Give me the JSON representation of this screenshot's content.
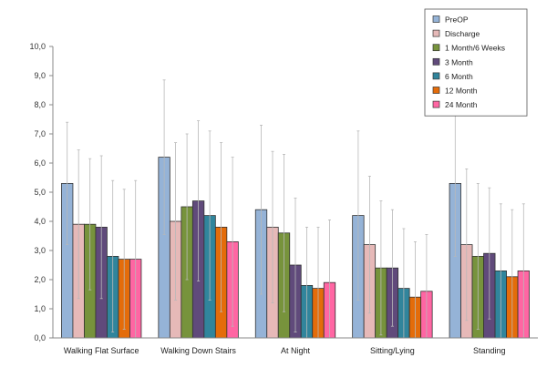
{
  "chart_data": {
    "type": "bar",
    "categories": [
      "Walking Flat Surface",
      "Walking Down Stairs",
      "At Night",
      "Sitting/Lying",
      "Standing"
    ],
    "ylim": [
      0,
      10
    ],
    "yticks": [
      "0,0",
      "1,0",
      "2,0",
      "3,0",
      "4,0",
      "5,0",
      "6,0",
      "7,0",
      "8,0",
      "9,0",
      "10,0"
    ],
    "grid": false,
    "legend_position": "top-right",
    "error_bars": true,
    "series": [
      {
        "name": "PreOP",
        "color": "#95b3d7",
        "values": [
          5.3,
          6.2,
          4.4,
          4.2,
          5.3
        ],
        "errors": [
          2.1,
          2.65,
          2.9,
          2.9,
          2.5
        ]
      },
      {
        "name": "Discharge",
        "color": "#e6b9b8",
        "values": [
          3.9,
          4.0,
          3.8,
          3.2,
          3.2
        ],
        "errors": [
          2.55,
          2.7,
          2.6,
          2.35,
          2.6
        ]
      },
      {
        "name": "1 Month/6 Weeks",
        "color": "#77933c",
        "values": [
          3.9,
          4.5,
          3.6,
          2.4,
          2.8
        ],
        "errors": [
          2.25,
          2.5,
          2.7,
          2.3,
          2.5
        ]
      },
      {
        "name": "3 Month",
        "color": "#604a7b",
        "values": [
          3.8,
          4.7,
          2.5,
          2.4,
          2.9
        ],
        "errors": [
          2.45,
          2.75,
          2.3,
          2.0,
          2.25
        ]
      },
      {
        "name": "6 Month",
        "color": "#31859c",
        "values": [
          2.8,
          4.2,
          1.8,
          1.7,
          2.3
        ],
        "errors": [
          2.6,
          2.9,
          2.0,
          2.05,
          2.3
        ]
      },
      {
        "name": "12 Month",
        "color": "#e46c0a",
        "values": [
          2.7,
          3.8,
          1.7,
          1.4,
          2.1
        ],
        "errors": [
          2.4,
          2.9,
          2.1,
          1.9,
          2.3
        ]
      },
      {
        "name": "24 Month",
        "color": "#ff66a3",
        "values": [
          2.7,
          3.3,
          1.9,
          1.6,
          2.3
        ],
        "errors": [
          2.7,
          2.9,
          2.15,
          1.95,
          2.3
        ]
      }
    ]
  }
}
